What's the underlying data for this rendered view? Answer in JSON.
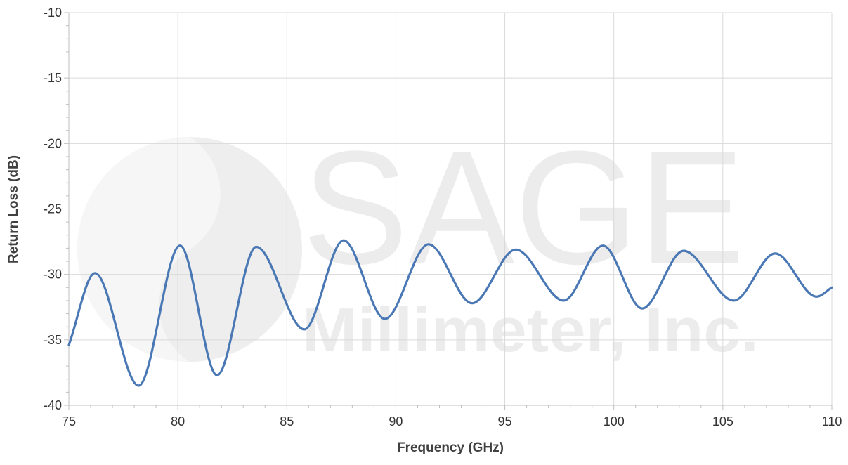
{
  "chart_data": {
    "type": "line",
    "title": "",
    "xlabel": "Frequency (GHz)",
    "ylabel": "Return Loss (dB)",
    "xlim": [
      75,
      110
    ],
    "ylim": [
      -40,
      -10
    ],
    "x_ticks": [
      75,
      80,
      85,
      90,
      95,
      100,
      105,
      110
    ],
    "y_ticks": [
      -10,
      -15,
      -20,
      -25,
      -30,
      -35,
      -40
    ],
    "grid": true,
    "legend": "none",
    "series": [
      {
        "color": "#4a78b5",
        "points": [
          [
            75.0,
            -35.4
          ],
          [
            76.2,
            -29.9
          ],
          [
            78.2,
            -38.5
          ],
          [
            80.1,
            -27.8
          ],
          [
            81.8,
            -37.7
          ],
          [
            83.6,
            -27.9
          ],
          [
            85.8,
            -34.2
          ],
          [
            87.6,
            -27.4
          ],
          [
            89.5,
            -33.4
          ],
          [
            91.5,
            -27.7
          ],
          [
            93.5,
            -32.2
          ],
          [
            95.5,
            -28.1
          ],
          [
            97.7,
            -32.0
          ],
          [
            99.5,
            -27.8
          ],
          [
            101.3,
            -32.6
          ],
          [
            103.2,
            -28.2
          ],
          [
            105.5,
            -32.0
          ],
          [
            107.4,
            -28.4
          ],
          [
            109.3,
            -31.7
          ],
          [
            110.0,
            -31.0
          ]
        ]
      }
    ]
  },
  "watermark": {
    "brand": "SAGE",
    "company": "Millimeter, Inc."
  }
}
